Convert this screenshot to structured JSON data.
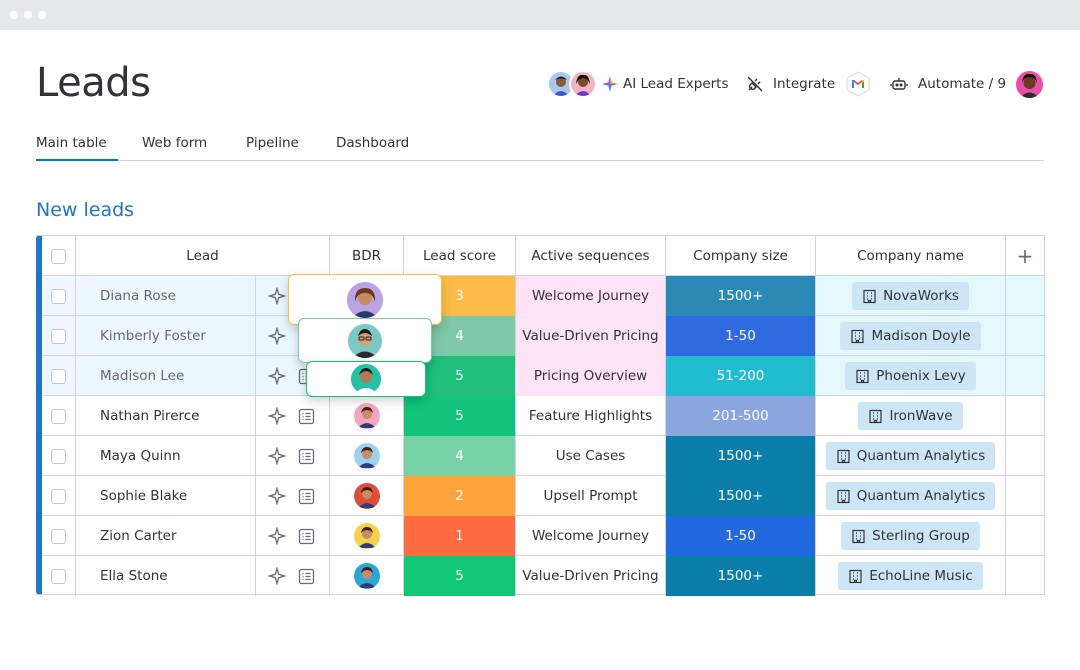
{
  "page": {
    "title": "Leads",
    "group_title": "New leads"
  },
  "toolbar": {
    "ai_label": "AI Lead Experts",
    "integrate_label": "Integrate",
    "automate_label": "Automate / 9"
  },
  "tabs": [
    {
      "label": "Main table",
      "active": true
    },
    {
      "label": "Web form",
      "active": false
    },
    {
      "label": "Pipeline",
      "active": false
    },
    {
      "label": "Dashboard",
      "active": false
    }
  ],
  "columns": {
    "lead": "Lead",
    "bdr": "BDR",
    "score": "Lead score",
    "sequences": "Active sequences",
    "size": "Company size",
    "company": "Company name",
    "add": "+"
  },
  "rows": [
    {
      "name": "Diana Rose",
      "score": "3",
      "score_color": "#fdbc47",
      "sequence": "Welcome Journey",
      "size": "1500+",
      "size_color": "#2a8ab5",
      "company": "NovaWorks",
      "highlight": true
    },
    {
      "name": "Kimberly Foster",
      "score": "4",
      "score_color": "#7fc8a9",
      "sequence": "Value-Driven Pricing",
      "size": "1-50",
      "size_color": "#2f6ae0",
      "company": "Madison Doyle",
      "highlight": true
    },
    {
      "name": "Madison Lee",
      "score": "5",
      "score_color": "#1fbf7a",
      "sequence": "Pricing Overview",
      "size": "51-200",
      "size_color": "#22bcd1",
      "company": "Phoenix Levy",
      "highlight": true
    },
    {
      "name": "Nathan Pirerce",
      "score": "5",
      "score_color": "#13c37b",
      "sequence": "Feature Highlights",
      "size": "201-500",
      "size_color": "#8aa6dd",
      "company": "IronWave",
      "highlight": false
    },
    {
      "name": "Maya Quinn",
      "score": "4",
      "score_color": "#77d3a5",
      "sequence": "Use Cases",
      "size": "1500+",
      "size_color": "#0a7ea8",
      "company": "Quantum Analytics",
      "highlight": false
    },
    {
      "name": "Sophie Blake",
      "score": "2",
      "score_color": "#fda53a",
      "sequence": "Upsell Prompt",
      "size": "1500+",
      "size_color": "#0a7ea8",
      "company": "Quantum Analytics",
      "highlight": false
    },
    {
      "name": "Zion Carter",
      "score": "1",
      "score_color": "#fc6c3e",
      "sequence": "Welcome Journey",
      "size": "1-50",
      "size_color": "#2169dd",
      "company": "Sterling Group",
      "highlight": false
    },
    {
      "name": "Ella Stone",
      "score": "5",
      "score_color": "#0fc874",
      "sequence": "Value-Driven Pricing",
      "size": "1500+",
      "size_color": "#0a7ea8",
      "company": "EchoLine Music",
      "highlight": false
    }
  ],
  "icons": {
    "ai": "sparkle-icon",
    "integrate": "plug-icon",
    "gmail": "gmail-icon",
    "automate": "robot-icon",
    "lead_ai": "sparkle-outline-icon",
    "lead_doc": "list-doc-icon",
    "company": "building-icon"
  }
}
